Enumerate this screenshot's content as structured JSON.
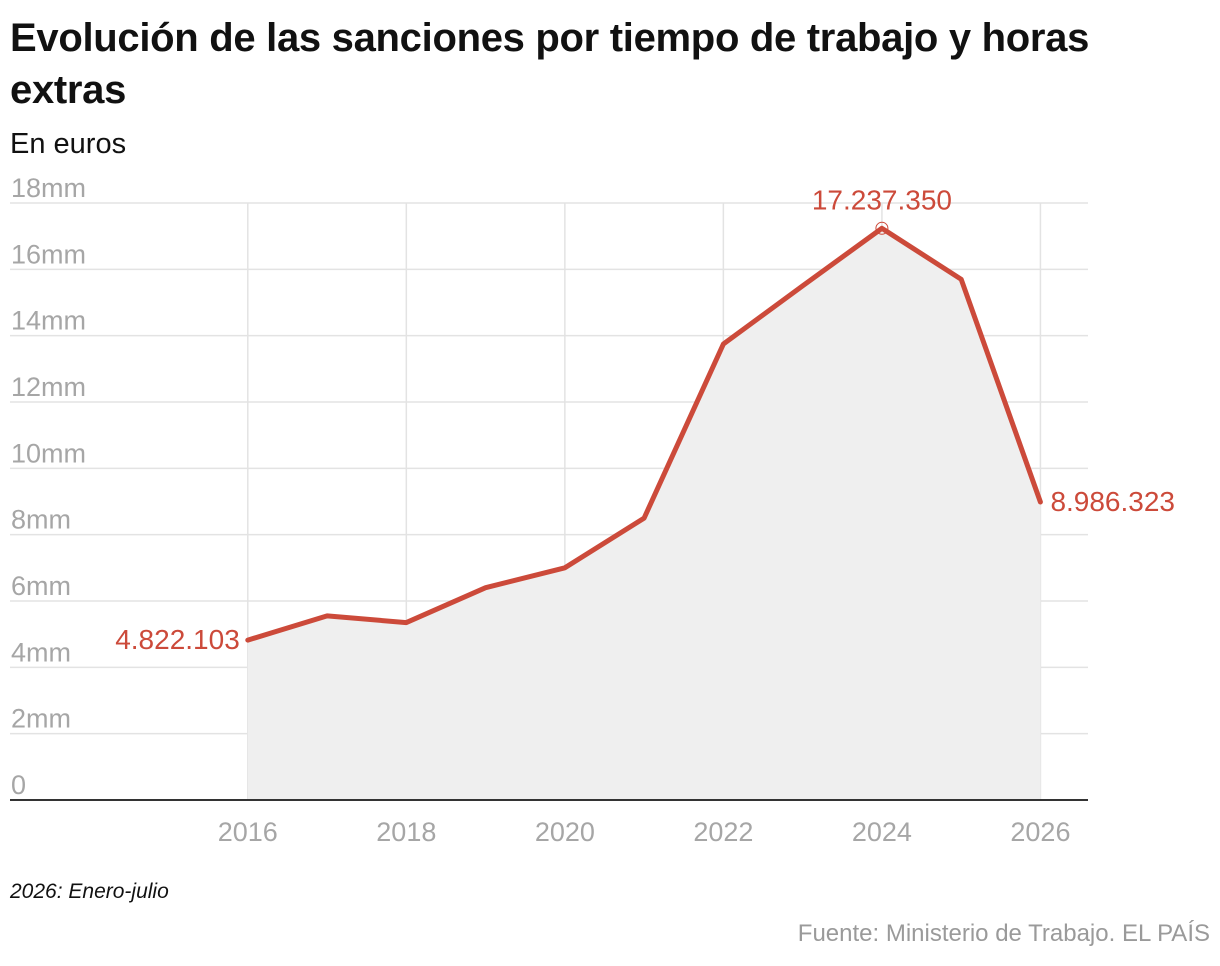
{
  "chart_data": {
    "type": "area",
    "title": "Evolución de las sanciones por tiempo de trabajo y horas extras",
    "subtitle": "En euros",
    "x": [
      2016,
      2017,
      2018,
      2019,
      2020,
      2021,
      2022,
      2023,
      2024,
      2025,
      2026
    ],
    "series": [
      {
        "name": "",
        "values": [
          4822103,
          5550000,
          5350000,
          6400000,
          7000000,
          8500000,
          13750000,
          15500000,
          17237350,
          15700000,
          8986323
        ]
      }
    ],
    "xlim": [
      2013,
      2026.6
    ],
    "ylim": [
      0,
      18000000
    ],
    "x_ticks": [
      2016,
      2018,
      2020,
      2022,
      2024,
      2026
    ],
    "x_tick_labels": [
      "2016",
      "2018",
      "2020",
      "2022",
      "2024",
      "2026"
    ],
    "y_ticks": [
      0,
      2000000,
      4000000,
      6000000,
      8000000,
      10000000,
      12000000,
      14000000,
      16000000,
      18000000
    ],
    "y_tick_labels": [
      "0",
      "2mm",
      "4mm",
      "6mm",
      "8mm",
      "10mm",
      "12mm",
      "14mm",
      "16mm",
      "18mm"
    ],
    "annotations": [
      {
        "x": 2016,
        "y": 4822103,
        "text": "4.822.103",
        "position": "left"
      },
      {
        "x": 2024,
        "y": 17237350,
        "text": "17.237.350",
        "position": "top"
      },
      {
        "x": 2026,
        "y": 8986323,
        "text": "8.986.323",
        "position": "right"
      }
    ],
    "grid": true,
    "legend": "none",
    "colors": {
      "line": "#cc4a3a",
      "area": "#efefef",
      "grid": "#e3e3e3",
      "tick_text": "#a6a6a6",
      "axis": "#333333"
    }
  },
  "note": "2026:  Enero-julio",
  "source": "Fuente: Ministerio de Trabajo. EL PAÍS"
}
